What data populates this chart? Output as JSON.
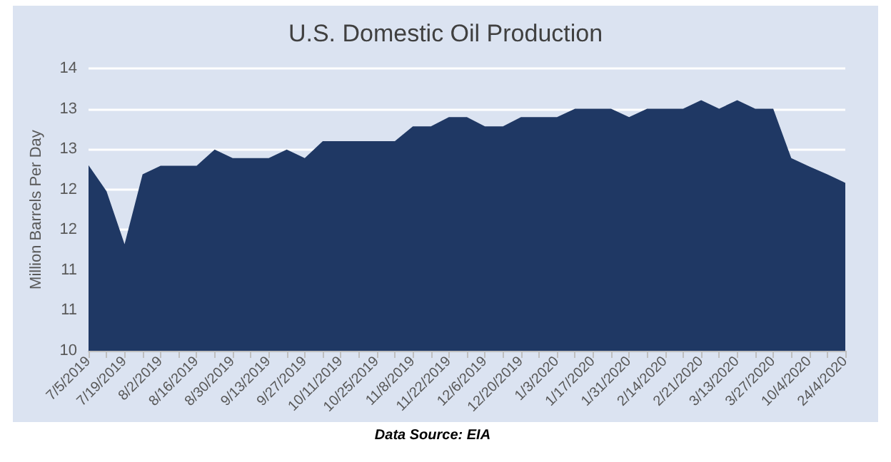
{
  "chart_data": {
    "type": "area",
    "title": "U.S. Domestic Oil Production",
    "ylabel": "Million Barrels Per Day",
    "annotations": [
      "Data Source: EIA"
    ],
    "categories": [
      "7/5/2019",
      null,
      "7/19/2019",
      null,
      "8/2/2019",
      null,
      "8/16/2019",
      null,
      "8/30/2019",
      null,
      "9/13/2019",
      null,
      "9/27/2019",
      null,
      "10/11/2019",
      null,
      "10/25/2019",
      null,
      "11/8/2019",
      null,
      "11/22/2019",
      null,
      "12/6/2019",
      null,
      "12/20/2019",
      null,
      "1/3/2020",
      null,
      "1/17/2020",
      null,
      "1/31/2020",
      null,
      "2/14/2020",
      null,
      "2/21/2020",
      null,
      "3/13/2020",
      null,
      "3/27/2020",
      null,
      "10/4/2020",
      null,
      "24/4/2020"
    ],
    "series": [
      {
        "color": "#1f3864",
        "values": [
          12.63,
          12.26,
          11.51,
          12.5,
          12.62,
          12.62,
          12.62,
          12.85,
          12.73,
          12.73,
          12.73,
          12.85,
          12.73,
          12.97,
          12.97,
          12.97,
          12.97,
          12.97,
          13.18,
          13.18,
          13.31,
          13.31,
          13.18,
          13.18,
          13.31,
          13.31,
          13.31,
          13.43,
          13.43,
          13.43,
          13.31,
          13.43,
          13.43,
          13.43,
          13.55,
          13.43,
          13.55,
          13.43,
          13.43,
          12.73,
          12.61,
          12.5,
          12.38
        ]
      }
    ],
    "ylim": [
      10,
      14
    ],
    "yticks": [
      10,
      {
        "value": 10.5714,
        "label": "11"
      },
      {
        "value": 11.1429,
        "label": "11"
      },
      {
        "value": 11.7143,
        "label": "12"
      },
      {
        "value": 12.2857,
        "label": "12"
      },
      {
        "value": 12.8571,
        "label": "13"
      },
      {
        "value": 13.4286,
        "label": "13"
      },
      14
    ],
    "grid": "y"
  }
}
